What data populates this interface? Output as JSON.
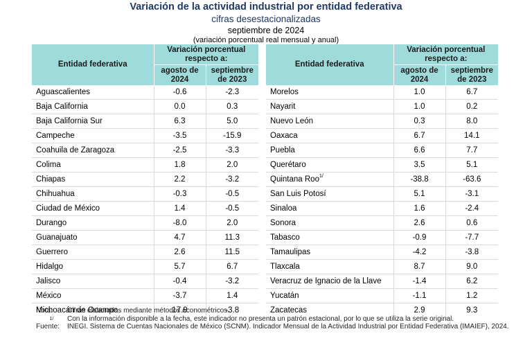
{
  "header": {
    "title": "Variación de la actividad industrial por entidad federativa",
    "subtitle": "cifras desestacionalizadas",
    "period": "septiembre de 2024",
    "note": "(variación porcentual real mensual y anual)"
  },
  "table_headers": {
    "entity": "Entidad federativa",
    "group": "Variación porcentual respecto a:",
    "col1": "agosto de 2024",
    "col2": "septiembre de 2023"
  },
  "left_rows": [
    {
      "name": "Aguascalientes",
      "sup": "",
      "monthly": "-0.6",
      "annual": "-2.3"
    },
    {
      "name": "Baja California",
      "sup": "",
      "monthly": "0.0",
      "annual": "0.3"
    },
    {
      "name": "Baja California Sur",
      "sup": "",
      "monthly": "6.3",
      "annual": "5.0"
    },
    {
      "name": "Campeche",
      "sup": "",
      "monthly": "-3.5",
      "annual": "-15.9"
    },
    {
      "name": "Coahuila de Zaragoza",
      "sup": "",
      "monthly": "-2.5",
      "annual": "-3.3"
    },
    {
      "name": "Colima",
      "sup": "",
      "monthly": "1.8",
      "annual": "2.0"
    },
    {
      "name": "Chiapas",
      "sup": "",
      "monthly": "2.2",
      "annual": "-3.2"
    },
    {
      "name": "Chihuahua",
      "sup": "",
      "monthly": "-0.3",
      "annual": "-0.5"
    },
    {
      "name": "Ciudad de México",
      "sup": "",
      "monthly": "1.4",
      "annual": "-0.5"
    },
    {
      "name": "Durango",
      "sup": "",
      "monthly": "-8.0",
      "annual": "2.0"
    },
    {
      "name": "Guanajuato",
      "sup": "",
      "monthly": "4.7",
      "annual": "11.3"
    },
    {
      "name": "Guerrero",
      "sup": "",
      "monthly": "2.6",
      "annual": "11.5"
    },
    {
      "name": "Hidalgo",
      "sup": "",
      "monthly": "5.7",
      "annual": "6.7"
    },
    {
      "name": "Jalisco",
      "sup": "",
      "monthly": "-0.4",
      "annual": "-3.2"
    },
    {
      "name": "México",
      "sup": "",
      "monthly": "-3.7",
      "annual": "1.4"
    },
    {
      "name": "Michoacán de Ocampo",
      "sup": "",
      "monthly": "17.9",
      "annual": "-3.8"
    }
  ],
  "right_rows": [
    {
      "name": "Morelos",
      "sup": "",
      "monthly": "1.0",
      "annual": "6.7"
    },
    {
      "name": "Nayarit",
      "sup": "",
      "monthly": "1.0",
      "annual": "0.2"
    },
    {
      "name": "Nuevo León",
      "sup": "",
      "monthly": "0.3",
      "annual": "8.0"
    },
    {
      "name": "Oaxaca",
      "sup": "",
      "monthly": "6.7",
      "annual": "14.1"
    },
    {
      "name": "Puebla",
      "sup": "",
      "monthly": "6.6",
      "annual": "7.7"
    },
    {
      "name": "Querétaro",
      "sup": "",
      "monthly": "3.5",
      "annual": "5.1"
    },
    {
      "name": "Quintana Roo",
      "sup": "1/",
      "monthly": "-38.8",
      "annual": "-63.6"
    },
    {
      "name": "San Luis Potosí",
      "sup": "",
      "monthly": "5.1",
      "annual": "-3.1"
    },
    {
      "name": "Sinaloa",
      "sup": "",
      "monthly": "1.6",
      "annual": "-2.4"
    },
    {
      "name": "Sonora",
      "sup": "",
      "monthly": "2.6",
      "annual": "0.6"
    },
    {
      "name": "Tabasco",
      "sup": "",
      "monthly": "-0.9",
      "annual": "-7.7"
    },
    {
      "name": "Tamaulipas",
      "sup": "",
      "monthly": "-4.2",
      "annual": "-3.8"
    },
    {
      "name": "Tlaxcala",
      "sup": "",
      "monthly": "8.7",
      "annual": "9.0"
    },
    {
      "name": "Veracruz de Ignacio de la Llave",
      "sup": "",
      "monthly": "-1.4",
      "annual": "6.2"
    },
    {
      "name": "Yucatán",
      "sup": "",
      "monthly": "-1.1",
      "annual": "1.2"
    },
    {
      "name": "Zacatecas",
      "sup": "",
      "monthly": "2.9",
      "annual": "9.3"
    }
  ],
  "footer": {
    "nota_label": "Nota:",
    "nota_text": "Cifras elaboradas mediante métodos econométricos.",
    "footnote_label": "1/",
    "footnote_text": "Con la información disponible a la fecha, este indicador no presenta un patrón estacional, por lo que se utiliza la serie original.",
    "fuente_label": "Fuente:",
    "fuente_text": "INEGI. Sistema de Cuentas Nacionales de México (SCNM). Indicador Mensual de la Actividad Industrial por Entidad Federativa (IMAIEF), 2024."
  }
}
